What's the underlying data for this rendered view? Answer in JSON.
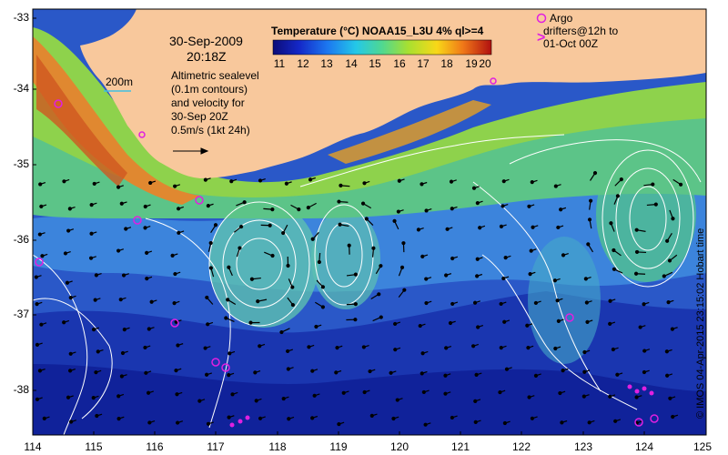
{
  "map": {
    "date": "30-Sep-2009",
    "time": "20:18Z",
    "scale_label": "200m",
    "altimetry_note": [
      "Altimetric sealevel",
      "(0.1m contours)",
      "and velocity for",
      "30-Sep 20Z"
    ],
    "vector_key": "0.5m/s (1kt 24h)",
    "colorbar_title": "Temperature (°C) NOAA15_L3U 4% ql>=4",
    "colorbar_ticks": [
      "11",
      "12",
      "13",
      "14",
      "15",
      "16",
      "17",
      "18",
      "19",
      "20"
    ],
    "argo_label": "Argo",
    "drifters_label": [
      "drifters@12h to",
      "01-Oct 00Z"
    ],
    "credit": "© IMOS 04-Apr-2015 23:15:02 Hobart time",
    "latitude_ticks": [
      "-33",
      "-34",
      "-35",
      "-36",
      "-37",
      "-38"
    ],
    "longitude_ticks": [
      "114",
      "115",
      "116",
      "117",
      "118",
      "119",
      "120",
      "121",
      "122",
      "123",
      "124",
      "125"
    ],
    "colors": {
      "land": "#f8c89c",
      "deep_ocean": "#1428a0",
      "argo": "#e020e0",
      "contour": "#ffffff"
    }
  }
}
